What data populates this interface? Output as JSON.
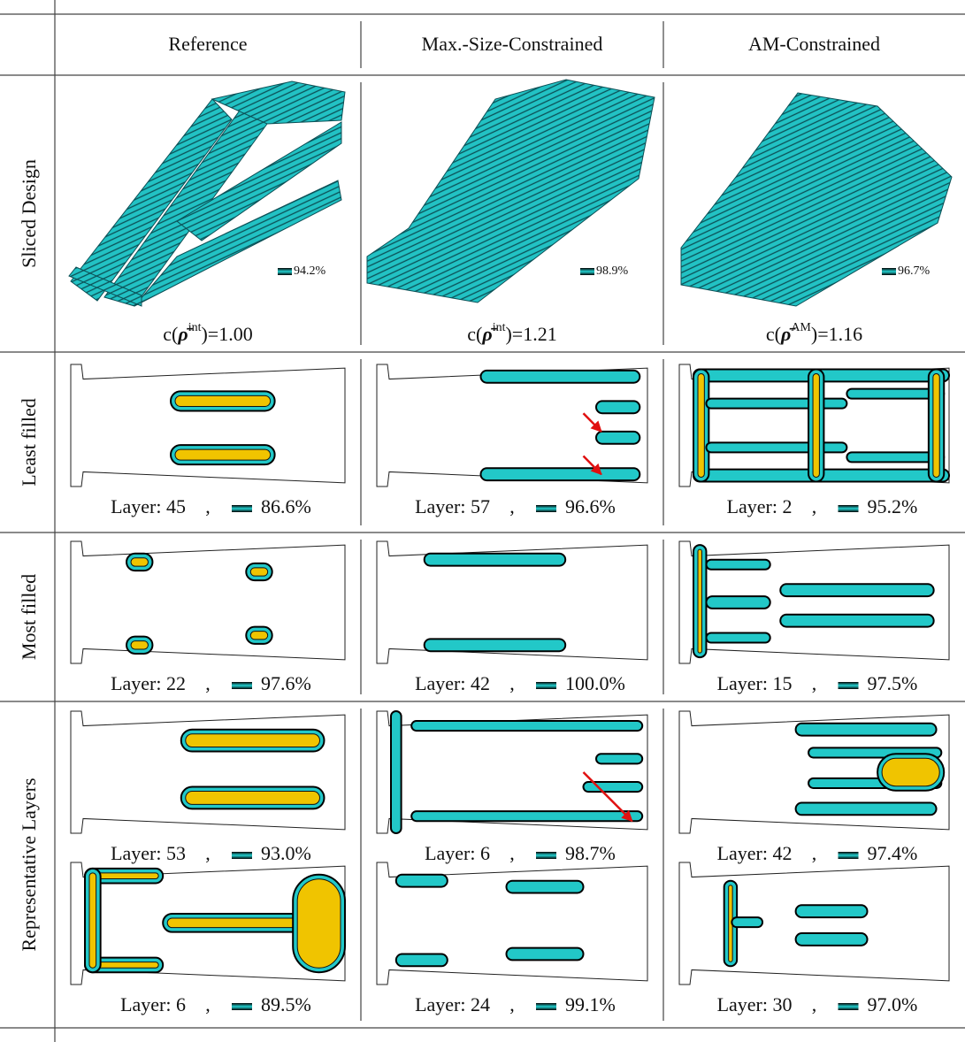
{
  "header": {
    "columns": [
      "Reference",
      "Max.-Size-Constrained",
      "AM-Constrained"
    ]
  },
  "row_labels": [
    "Sliced Design",
    "Least filled",
    "Most filled",
    "Representative Layers"
  ],
  "separator": ",",
  "sliced_design": [
    {
      "fill": "94.2%",
      "compliance": {
        "prefix": "c(",
        "symbol": "ρ̄",
        "sup": "int",
        "suffix": ")=1.00"
      }
    },
    {
      "fill": "98.9%",
      "compliance": {
        "prefix": "c(",
        "symbol": "ρ̄",
        "sup": "int",
        "suffix": ")=1.21"
      }
    },
    {
      "fill": "96.7%",
      "compliance": {
        "prefix": "c(",
        "symbol": "ρ̄",
        "sup": "AM",
        "suffix": ")=1.16"
      }
    }
  ],
  "least_filled": [
    {
      "layer": "Layer: 45",
      "fill": "86.6%"
    },
    {
      "layer": "Layer: 57",
      "fill": "96.6%"
    },
    {
      "layer": "Layer: 2",
      "fill": "95.2%"
    }
  ],
  "most_filled": [
    {
      "layer": "Layer: 22",
      "fill": "97.6%"
    },
    {
      "layer": "Layer: 42",
      "fill": "100.0%"
    },
    {
      "layer": "Layer: 15",
      "fill": "97.5%"
    }
  ],
  "representative": [
    [
      {
        "layer": "Layer: 53",
        "fill": "93.0%"
      },
      {
        "layer": "Layer: 6",
        "fill": "98.7%"
      },
      {
        "layer": "Layer: 42",
        "fill": "97.4%"
      }
    ],
    [
      {
        "layer": "Layer: 6",
        "fill": "89.5%"
      },
      {
        "layer": "Layer: 24",
        "fill": "99.1%"
      },
      {
        "layer": "Layer: 30",
        "fill": "97.0%"
      }
    ]
  ]
}
